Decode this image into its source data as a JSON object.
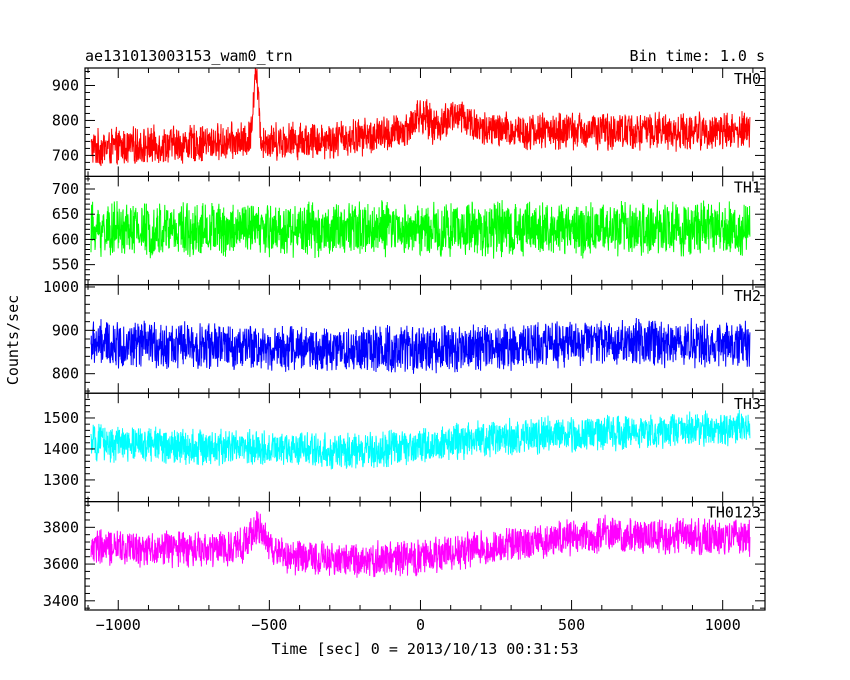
{
  "header": {
    "title": "ae131013003153_wam0_trn",
    "bin_time": "Bin time: 1.0 s"
  },
  "chart_data": {
    "type": "line",
    "xlabel": "Time [sec] 0 = 2013/10/13 00:31:53",
    "ylabel": "Counts/sec",
    "xlim": [
      -1110,
      1140
    ],
    "x_ticks": [
      -1000,
      -500,
      0,
      500,
      1000
    ],
    "x_tick_labels": [
      "−1000",
      "−500",
      "0",
      "500",
      "1000"
    ],
    "x_data_range": [
      -1090,
      1090
    ],
    "panels": [
      {
        "name": "TH0",
        "color": "#ff0000",
        "ylim": [
          640,
          950
        ],
        "y_ticks": [
          700,
          800,
          900
        ],
        "y_tick_labels": [
          "700",
          "800",
          "900"
        ],
        "trend": [
          [
            -1090,
            720
          ],
          [
            -600,
            740
          ],
          [
            -300,
            745
          ],
          [
            0,
            770
          ],
          [
            300,
            770
          ],
          [
            1090,
            770
          ]
        ],
        "noise": 60,
        "features": [
          {
            "x": -545,
            "amp": 200,
            "width": 8
          },
          {
            "x": 0,
            "amp": 45,
            "width": 25
          },
          {
            "x": 120,
            "amp": 45,
            "width": 40
          }
        ]
      },
      {
        "name": "TH1",
        "color": "#00ff00",
        "ylim": [
          510,
          725
        ],
        "y_ticks": [
          550,
          600,
          650,
          700
        ],
        "y_tick_labels": [
          "550",
          "600",
          "650",
          "700"
        ],
        "trend": [
          [
            -1090,
            620
          ],
          [
            1090,
            620
          ]
        ],
        "noise": 60,
        "features": []
      },
      {
        "name": "TH2",
        "color": "#0000ff",
        "ylim": [
          755,
          1005
        ],
        "y_ticks": [
          800,
          900,
          1000
        ],
        "y_tick_labels": [
          "800",
          "900",
          "1000"
        ],
        "trend": [
          [
            -1090,
            870
          ],
          [
            -300,
            855
          ],
          [
            0,
            855
          ],
          [
            500,
            870
          ],
          [
            1090,
            870
          ]
        ],
        "noise": 60,
        "features": []
      },
      {
        "name": "TH3",
        "color": "#00ffff",
        "ylim": [
          1230,
          1580
        ],
        "y_ticks": [
          1300,
          1400,
          1500
        ],
        "y_tick_labels": [
          "1300",
          "1400",
          "1500"
        ],
        "trend": [
          [
            -1090,
            1420
          ],
          [
            -200,
            1390
          ],
          [
            300,
            1440
          ],
          [
            1090,
            1470
          ]
        ],
        "noise": 65,
        "features": []
      },
      {
        "name": "TH0123",
        "color": "#ff00ff",
        "ylim": [
          3350,
          3940
        ],
        "y_ticks": [
          3400,
          3600,
          3800
        ],
        "y_tick_labels": [
          "3400",
          "3600",
          "3800"
        ],
        "trend": [
          [
            -1090,
            3690
          ],
          [
            -600,
            3680
          ],
          [
            -300,
            3620
          ],
          [
            0,
            3640
          ],
          [
            300,
            3710
          ],
          [
            600,
            3760
          ],
          [
            1090,
            3740
          ]
        ],
        "noise": 110,
        "features": [
          {
            "x": -540,
            "amp": 120,
            "width": 30
          }
        ]
      }
    ]
  }
}
